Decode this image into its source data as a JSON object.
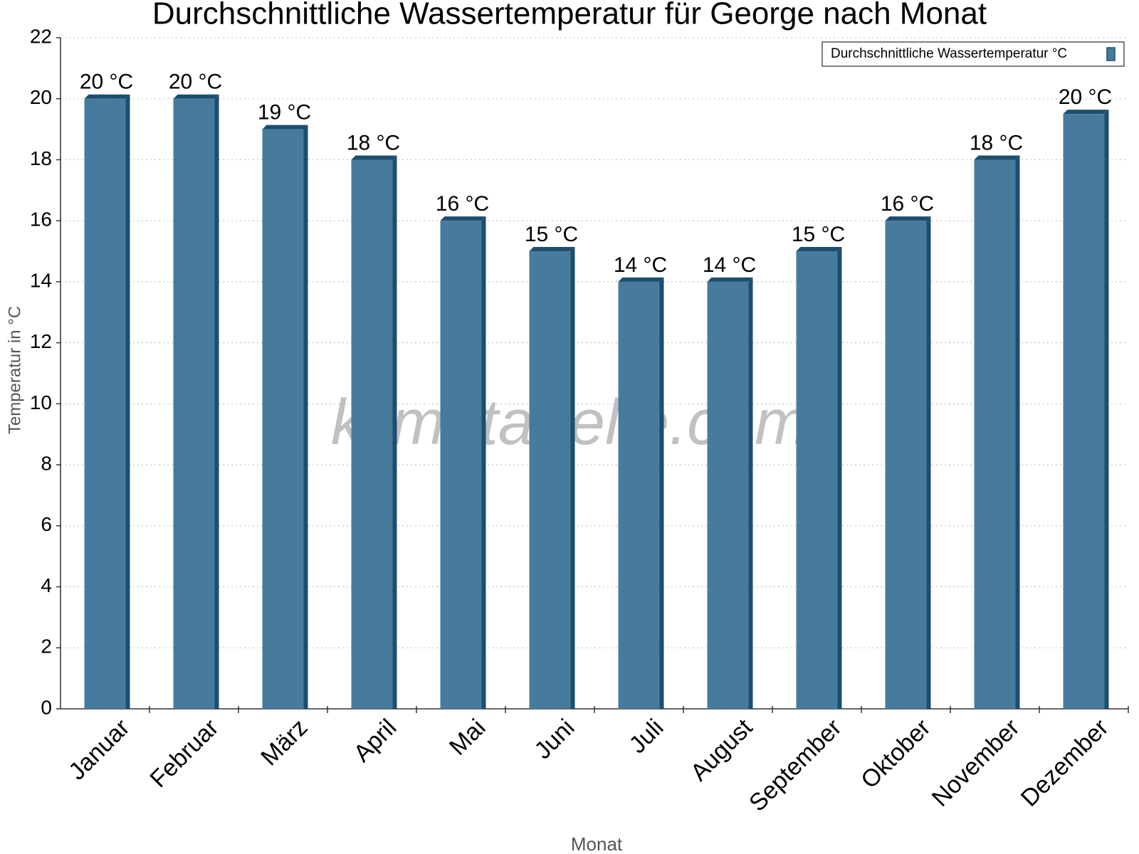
{
  "chart_data": {
    "type": "bar",
    "title": "Durchschnittliche Wassertemperatur für George nach Monat",
    "watermark": "klimatabelle.com",
    "x_label": "Monat",
    "y_label": "Temperatur in °C",
    "categories": [
      "Januar",
      "Februar",
      "März",
      "April",
      "Mai",
      "Juni",
      "Juli",
      "August",
      "September",
      "Oktober",
      "November",
      "Dezember"
    ],
    "series": [
      {
        "name": "Durchschnittliche Wassertemperatur °C",
        "color": "#467b9e",
        "values": [
          20,
          20,
          19,
          18,
          16,
          15,
          14,
          14,
          15,
          16,
          18,
          19.5
        ],
        "value_labels": [
          "20 °C",
          "20 °C",
          "19 °C",
          "18 °C",
          "16 °C",
          "15 °C",
          "14 °C",
          "14 °C",
          "15 °C",
          "16 °C",
          "18 °C",
          "20 °C"
        ]
      }
    ],
    "ylim": [
      0,
      22
    ],
    "yticks": [
      0,
      2,
      4,
      6,
      8,
      10,
      12,
      14,
      16,
      18,
      20,
      22
    ],
    "grid": true,
    "legend": "top-right"
  }
}
